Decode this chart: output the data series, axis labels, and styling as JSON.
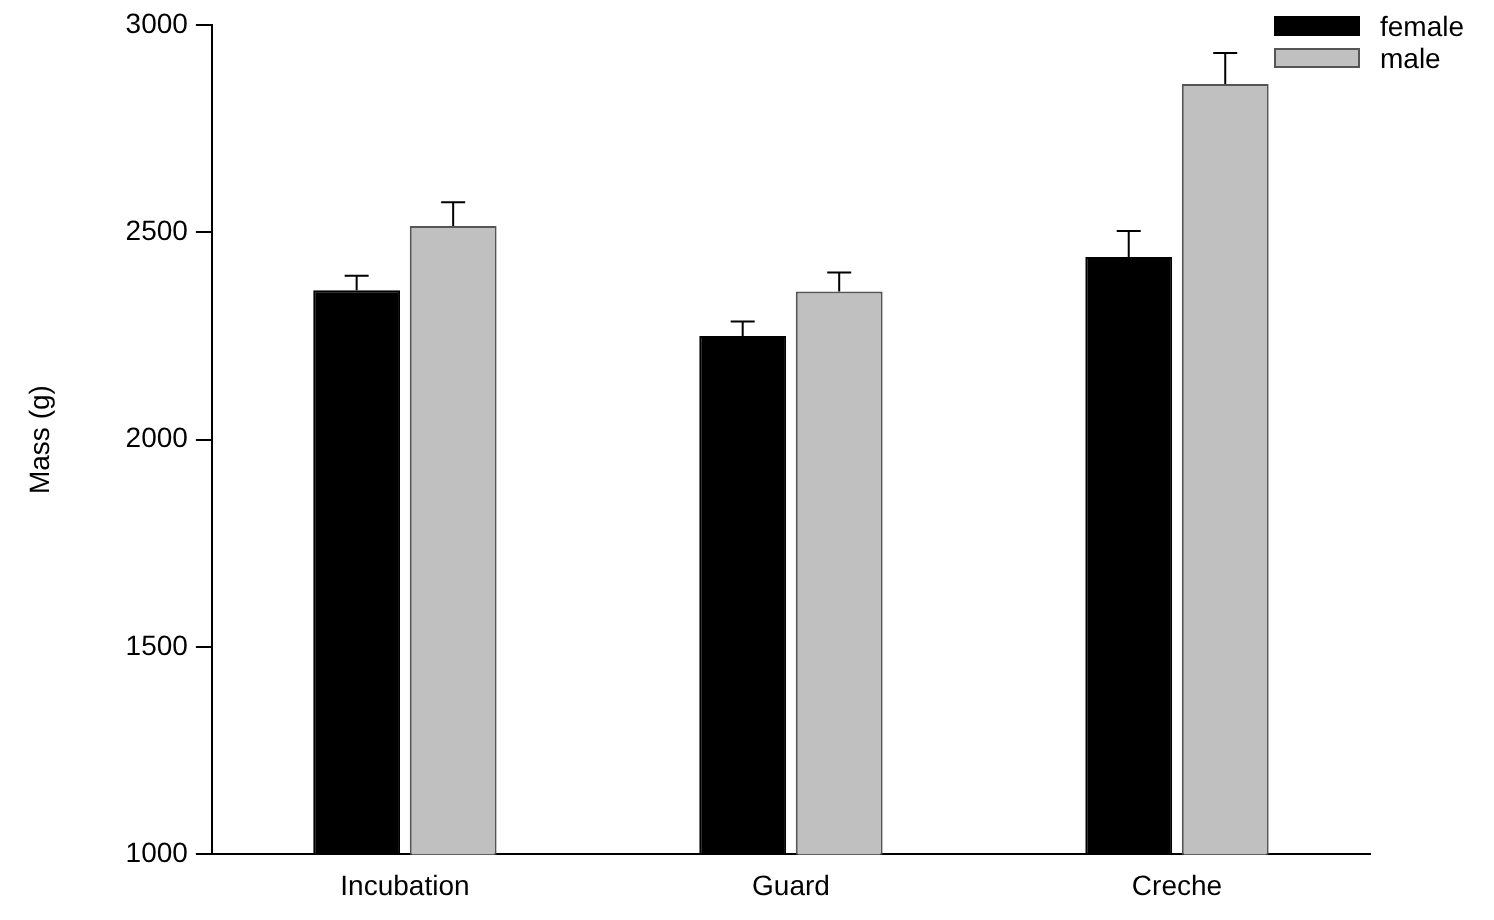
{
  "chart_data": {
    "type": "bar",
    "ylabel": "Mass (g)",
    "categories": [
      "Incubation",
      "Guard",
      "Creche"
    ],
    "series": [
      {
        "name": "female",
        "color": "#000000",
        "values": [
          2360,
          2250,
          2440
        ],
        "errors": [
          [
            2360,
            2395
          ],
          [
            2250,
            2285
          ],
          [
            2440,
            2503
          ]
        ]
      },
      {
        "name": "male",
        "color": "#c0c0c0",
        "values": [
          2515,
          2357,
          2857
        ],
        "errors": [
          [
            2515,
            2572
          ],
          [
            2357,
            2403
          ],
          [
            2857,
            2932
          ]
        ]
      }
    ],
    "ylim": [
      1000,
      3000
    ],
    "yticks": [
      1000,
      1500,
      2000,
      2500,
      3000
    ],
    "grid": false,
    "legend": "top right"
  }
}
